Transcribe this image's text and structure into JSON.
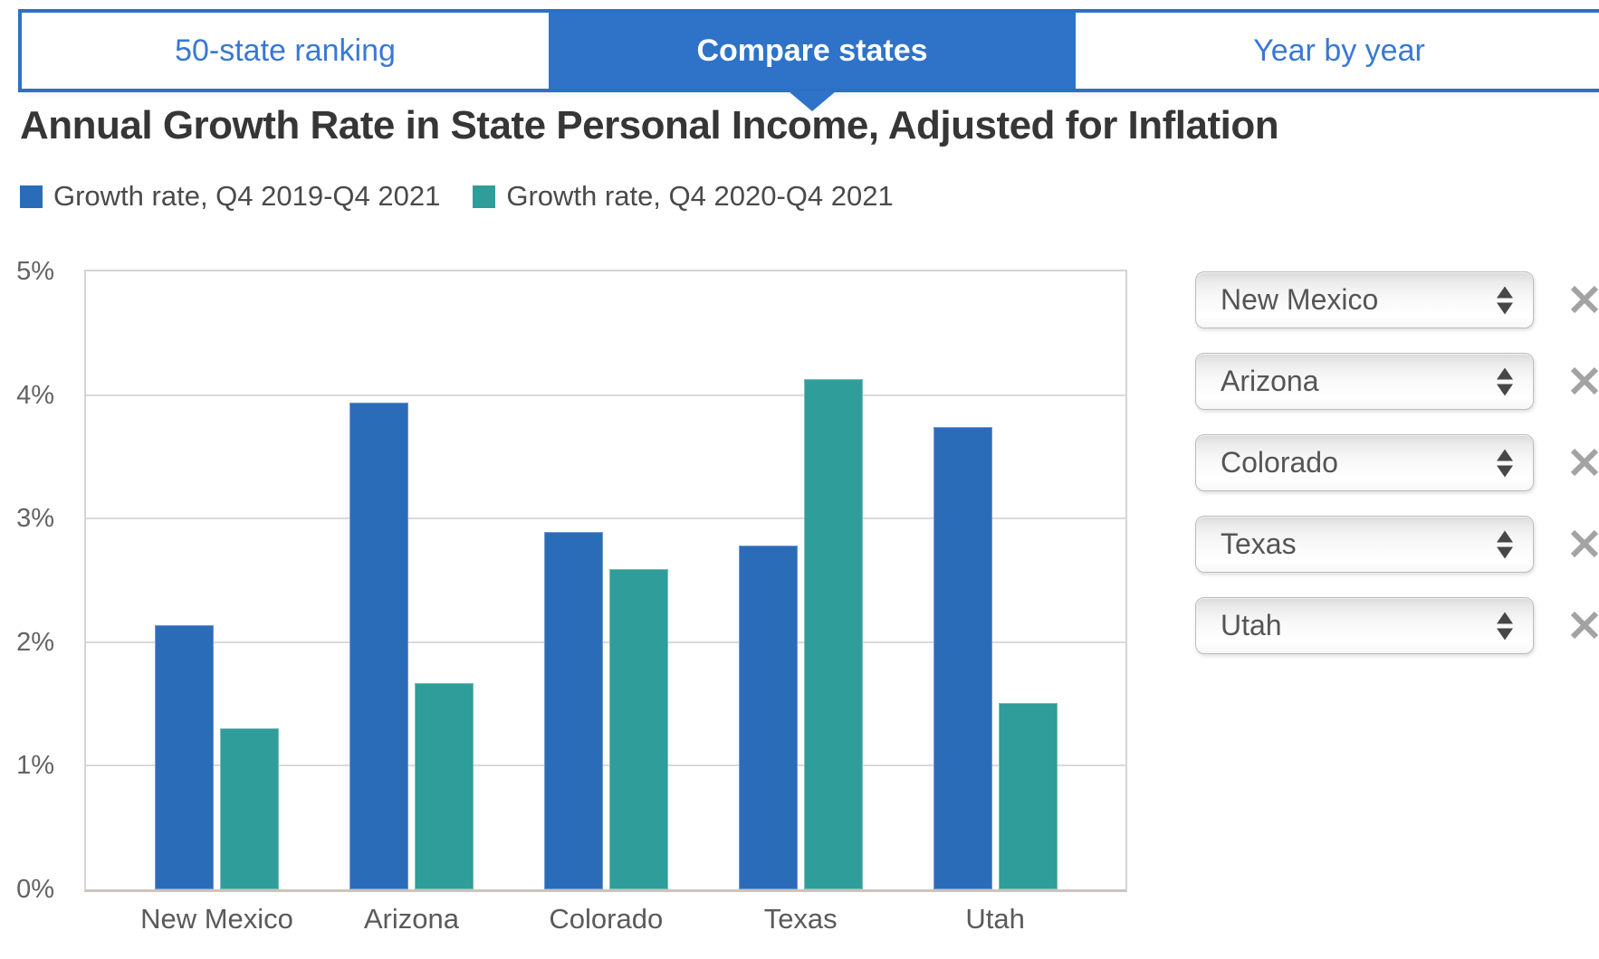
{
  "tabs": [
    {
      "label": "50-state ranking",
      "active": false
    },
    {
      "label": "Compare states",
      "active": true
    },
    {
      "label": "Year by year",
      "active": false
    }
  ],
  "chart_data": {
    "type": "bar",
    "title": "Annual Growth Rate in State Personal Income, Adjusted for Inflation",
    "categories": [
      "New Mexico",
      "Arizona",
      "Colorado",
      "Texas",
      "Utah"
    ],
    "series": [
      {
        "key": "q4-2019-q4-2021",
        "name": "Growth rate, Q4 2019-Q4 2021",
        "color": "#2b6cb9",
        "edge_color": "#7397cf",
        "values": [
          2.14,
          3.94,
          2.89,
          2.78,
          3.74
        ]
      },
      {
        "key": "q4-2020-q4-2021",
        "name": "Growth rate, Q4 2020-Q4 2021",
        "color": "#2f9d99",
        "edge_color": "#79bcb7",
        "values": [
          1.3,
          1.67,
          2.59,
          4.13,
          1.51
        ]
      }
    ],
    "ylim": [
      0,
      5
    ],
    "yticks": [
      "0%",
      "1%",
      "2%",
      "3%",
      "4%",
      "5%"
    ],
    "grid": true,
    "legend_position": "top-left"
  },
  "state_selectors": [
    {
      "value": "New Mexico"
    },
    {
      "value": "Arizona"
    },
    {
      "value": "Colorado"
    },
    {
      "value": "Texas"
    },
    {
      "value": "Utah"
    }
  ],
  "colors": {
    "tab_accent": "#2c70c5",
    "active_tab_fill": "#2e73c8",
    "series_blue": "#2b6cb9",
    "series_teal": "#2f9d99"
  }
}
